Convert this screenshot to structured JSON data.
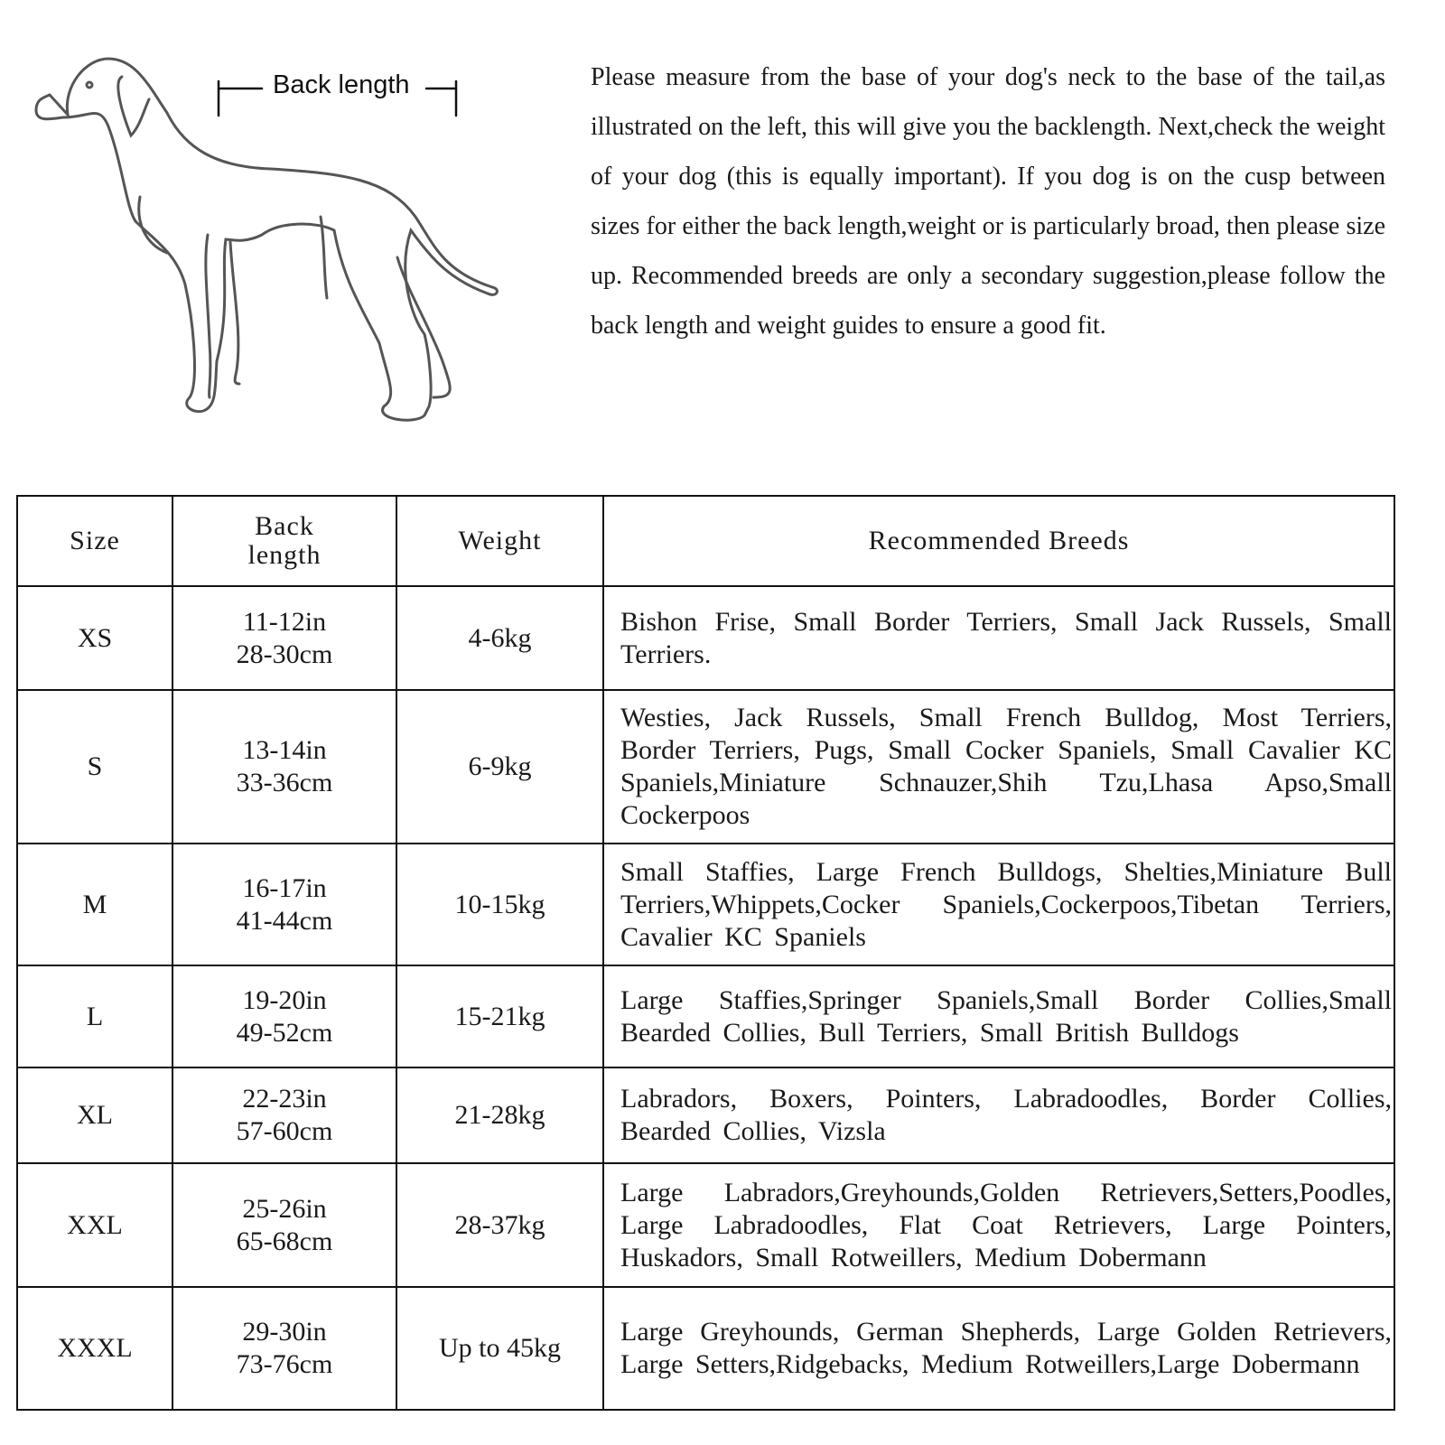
{
  "illustration": {
    "label": "Back length",
    "icon": "dog-outline"
  },
  "intro": "Please measure from the base of your dog's neck to the base of the tail,as illustrated on the left, this will give you the backlength. Next,check the weight of your dog (this is equally important). If you dog is on the cusp between sizes for either the back length,weight or is particularly broad, then please size up. Recommended breeds are only a secondary suggestion,please follow the back length and weight guides to ensure a good fit.",
  "table": {
    "headers": {
      "size": "Size",
      "back_length": "Back length",
      "weight": "Weight",
      "breeds": "Recommended Breeds"
    },
    "rows": [
      {
        "size": "XS",
        "in": "11-12in",
        "cm": "28-30cm",
        "weight": "4-6kg",
        "breeds": "Bishon Frise, Small Border Terriers, Small Jack Russels, Small Terriers."
      },
      {
        "size": "S",
        "in": "13-14in",
        "cm": "33-36cm",
        "weight": "6-9kg",
        "breeds": "Westies, Jack Russels, Small French Bulldog, Most Terriers, Border Terriers, Pugs, Small Cocker Spaniels, Small Cavalier KC Spaniels,Miniature Schnauzer,Shih Tzu,Lhasa Apso,Small Cockerpoos"
      },
      {
        "size": "M",
        "in": "16-17in",
        "cm": "41-44cm",
        "weight": "10-15kg",
        "breeds": "Small Staffies, Large French Bulldogs, Shelties,Miniature Bull Terriers,Whippets,Cocker Spaniels,Cockerpoos,Tibetan Terriers, Cavalier KC Spaniels"
      },
      {
        "size": "L",
        "in": "19-20in",
        "cm": "49-52cm",
        "weight": "15-21kg",
        "breeds": "Large Staffies,Springer Spaniels,Small Border Collies,Small Bearded Collies, Bull Terriers, Small British Bulldogs"
      },
      {
        "size": "XL",
        "in": "22-23in",
        "cm": "57-60cm",
        "weight": "21-28kg",
        "breeds": "Labradors, Boxers, Pointers, Labradoodles, Border Collies, Bearded Collies, Vizsla"
      },
      {
        "size": "XXL",
        "in": "25-26in",
        "cm": "65-68cm",
        "weight": "28-37kg",
        "breeds": "Large Labradors,Greyhounds,Golden Retrievers,Setters,Poodles, Large Labradoodles, Flat Coat Retrievers, Large Pointers, Huskadors, Small Rotweillers, Medium Dobermann"
      },
      {
        "size": "XXXL",
        "in": "29-30in",
        "cm": "73-76cm",
        "weight": "Up to 45kg",
        "breeds": "Large Greyhounds, German Shepherds, Large Golden Retrievers, Large Setters,Ridgebacks, Medium Rotweillers,Large Dobermann"
      }
    ]
  }
}
